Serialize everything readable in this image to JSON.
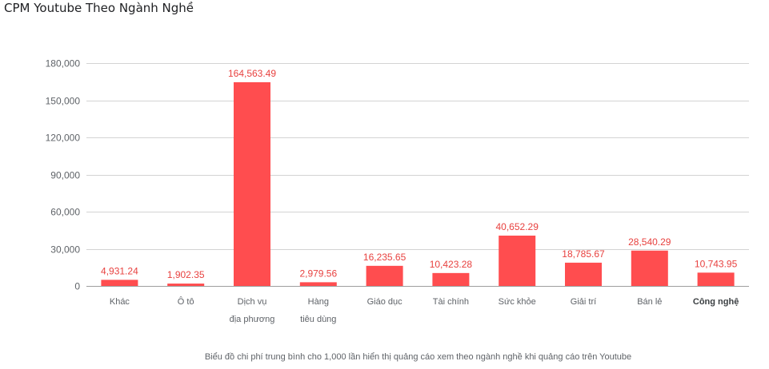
{
  "chart_data": {
    "type": "bar",
    "title": "CPM Youtube Theo Ngành Nghề",
    "caption": "Biểu đồ chi phí trung bình cho 1,000 lần hiển thị quảng cáo xem theo ngành nghề khi quảng cáo trên Youtube",
    "categories": [
      [
        "Khác"
      ],
      [
        "Ô tô"
      ],
      [
        "Dịch vụ",
        "địa phương"
      ],
      [
        "Hàng",
        "tiêu dùng"
      ],
      [
        "Giáo dục"
      ],
      [
        "Tài chính"
      ],
      [
        "Sức khỏe"
      ],
      [
        "Giải trí"
      ],
      [
        "Bán lẻ"
      ],
      [
        "Công nghệ"
      ]
    ],
    "values": [
      4931.24,
      1902.35,
      164563.49,
      2979.56,
      16235.65,
      10423.28,
      40652.29,
      18785.67,
      28540.29,
      10743.95
    ],
    "value_labels": [
      "4,931.24",
      "1,902.35",
      "164,563.49",
      "2,979.56",
      "16,235.65",
      "10,423.28",
      "40,652.29",
      "18,785.67",
      "28,540.29",
      "10,743.95"
    ],
    "yticks": [
      0,
      30000,
      60000,
      90000,
      120000,
      150000,
      180000
    ],
    "ytick_labels": [
      "0",
      "30,000",
      "60,000",
      "90,000",
      "120,000",
      "150,000",
      "180,000"
    ],
    "ylim": [
      0,
      180000
    ],
    "grid": true,
    "legend": "none",
    "bar_color": "#ff4d4f",
    "label_color": "#e8413f"
  }
}
